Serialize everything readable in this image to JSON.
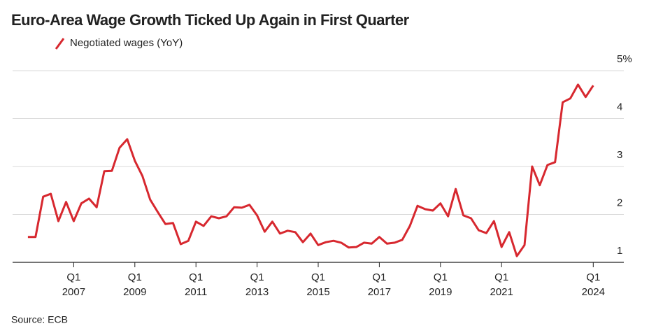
{
  "chart_data": {
    "type": "line",
    "title": "Euro-Area Wage Growth Ticked Up Again in First Quarter",
    "source": "Source: ECB",
    "x": [
      2005.5,
      2005.75,
      2006,
      2006.25,
      2006.5,
      2006.75,
      2007,
      2007.25,
      2007.5,
      2007.75,
      2008,
      2008.25,
      2008.5,
      2008.75,
      2009,
      2009.25,
      2009.5,
      2009.75,
      2010,
      2010.25,
      2010.5,
      2010.75,
      2011,
      2011.25,
      2011.5,
      2011.75,
      2012,
      2012.25,
      2012.5,
      2012.75,
      2013,
      2013.25,
      2013.5,
      2013.75,
      2014,
      2014.25,
      2014.5,
      2014.75,
      2015,
      2015.25,
      2015.5,
      2015.75,
      2016,
      2016.25,
      2016.5,
      2016.75,
      2017,
      2017.25,
      2017.5,
      2017.75,
      2018,
      2018.25,
      2018.5,
      2018.75,
      2019,
      2019.25,
      2019.5,
      2019.75,
      2020,
      2020.25,
      2020.5,
      2020.75,
      2021,
      2021.25,
      2021.5,
      2021.75,
      2022,
      2022.25,
      2022.5,
      2022.75,
      2023,
      2023.25,
      2023.5,
      2023.75,
      2024
    ],
    "series": [
      {
        "name": "Negotiated wages (YoY)",
        "color": "#d7282f",
        "values": [
          1.53,
          1.53,
          2.37,
          2.43,
          1.86,
          2.26,
          1.86,
          2.23,
          2.33,
          2.15,
          2.9,
          2.91,
          3.39,
          3.57,
          3.12,
          2.8,
          2.31,
          2.05,
          1.8,
          1.82,
          1.38,
          1.45,
          1.85,
          1.76,
          1.96,
          1.92,
          1.96,
          2.15,
          2.14,
          2.2,
          1.98,
          1.64,
          1.85,
          1.6,
          1.66,
          1.63,
          1.42,
          1.6,
          1.36,
          1.42,
          1.45,
          1.41,
          1.31,
          1.32,
          1.41,
          1.39,
          1.53,
          1.39,
          1.41,
          1.47,
          1.76,
          2.18,
          2.11,
          2.08,
          2.23,
          1.96,
          2.53,
          1.98,
          1.92,
          1.67,
          1.61,
          1.86,
          1.32,
          1.63,
          1.13,
          1.36,
          3.0,
          2.61,
          3.03,
          3.09,
          4.34,
          4.42,
          4.71,
          4.45,
          4.69
        ]
      }
    ],
    "xlim": [
      2005,
      2025
    ],
    "xticks": [
      {
        "value": 2007,
        "label": "Q1 2007"
      },
      {
        "value": 2009,
        "label": "Q1 2009"
      },
      {
        "value": 2011,
        "label": "Q1 2011"
      },
      {
        "value": 2013,
        "label": "Q1 2013"
      },
      {
        "value": 2015,
        "label": "Q1 2015"
      },
      {
        "value": 2017,
        "label": "Q1 2017"
      },
      {
        "value": 2019,
        "label": "Q1 2019"
      },
      {
        "value": 2021,
        "label": "Q1 2021"
      },
      {
        "value": 2024,
        "label": "Q1 2024"
      }
    ],
    "ylim": [
      1,
      5
    ],
    "yticks": [
      1,
      2,
      3,
      4,
      {
        "value": 5,
        "label": "5%"
      }
    ],
    "grid": true
  }
}
